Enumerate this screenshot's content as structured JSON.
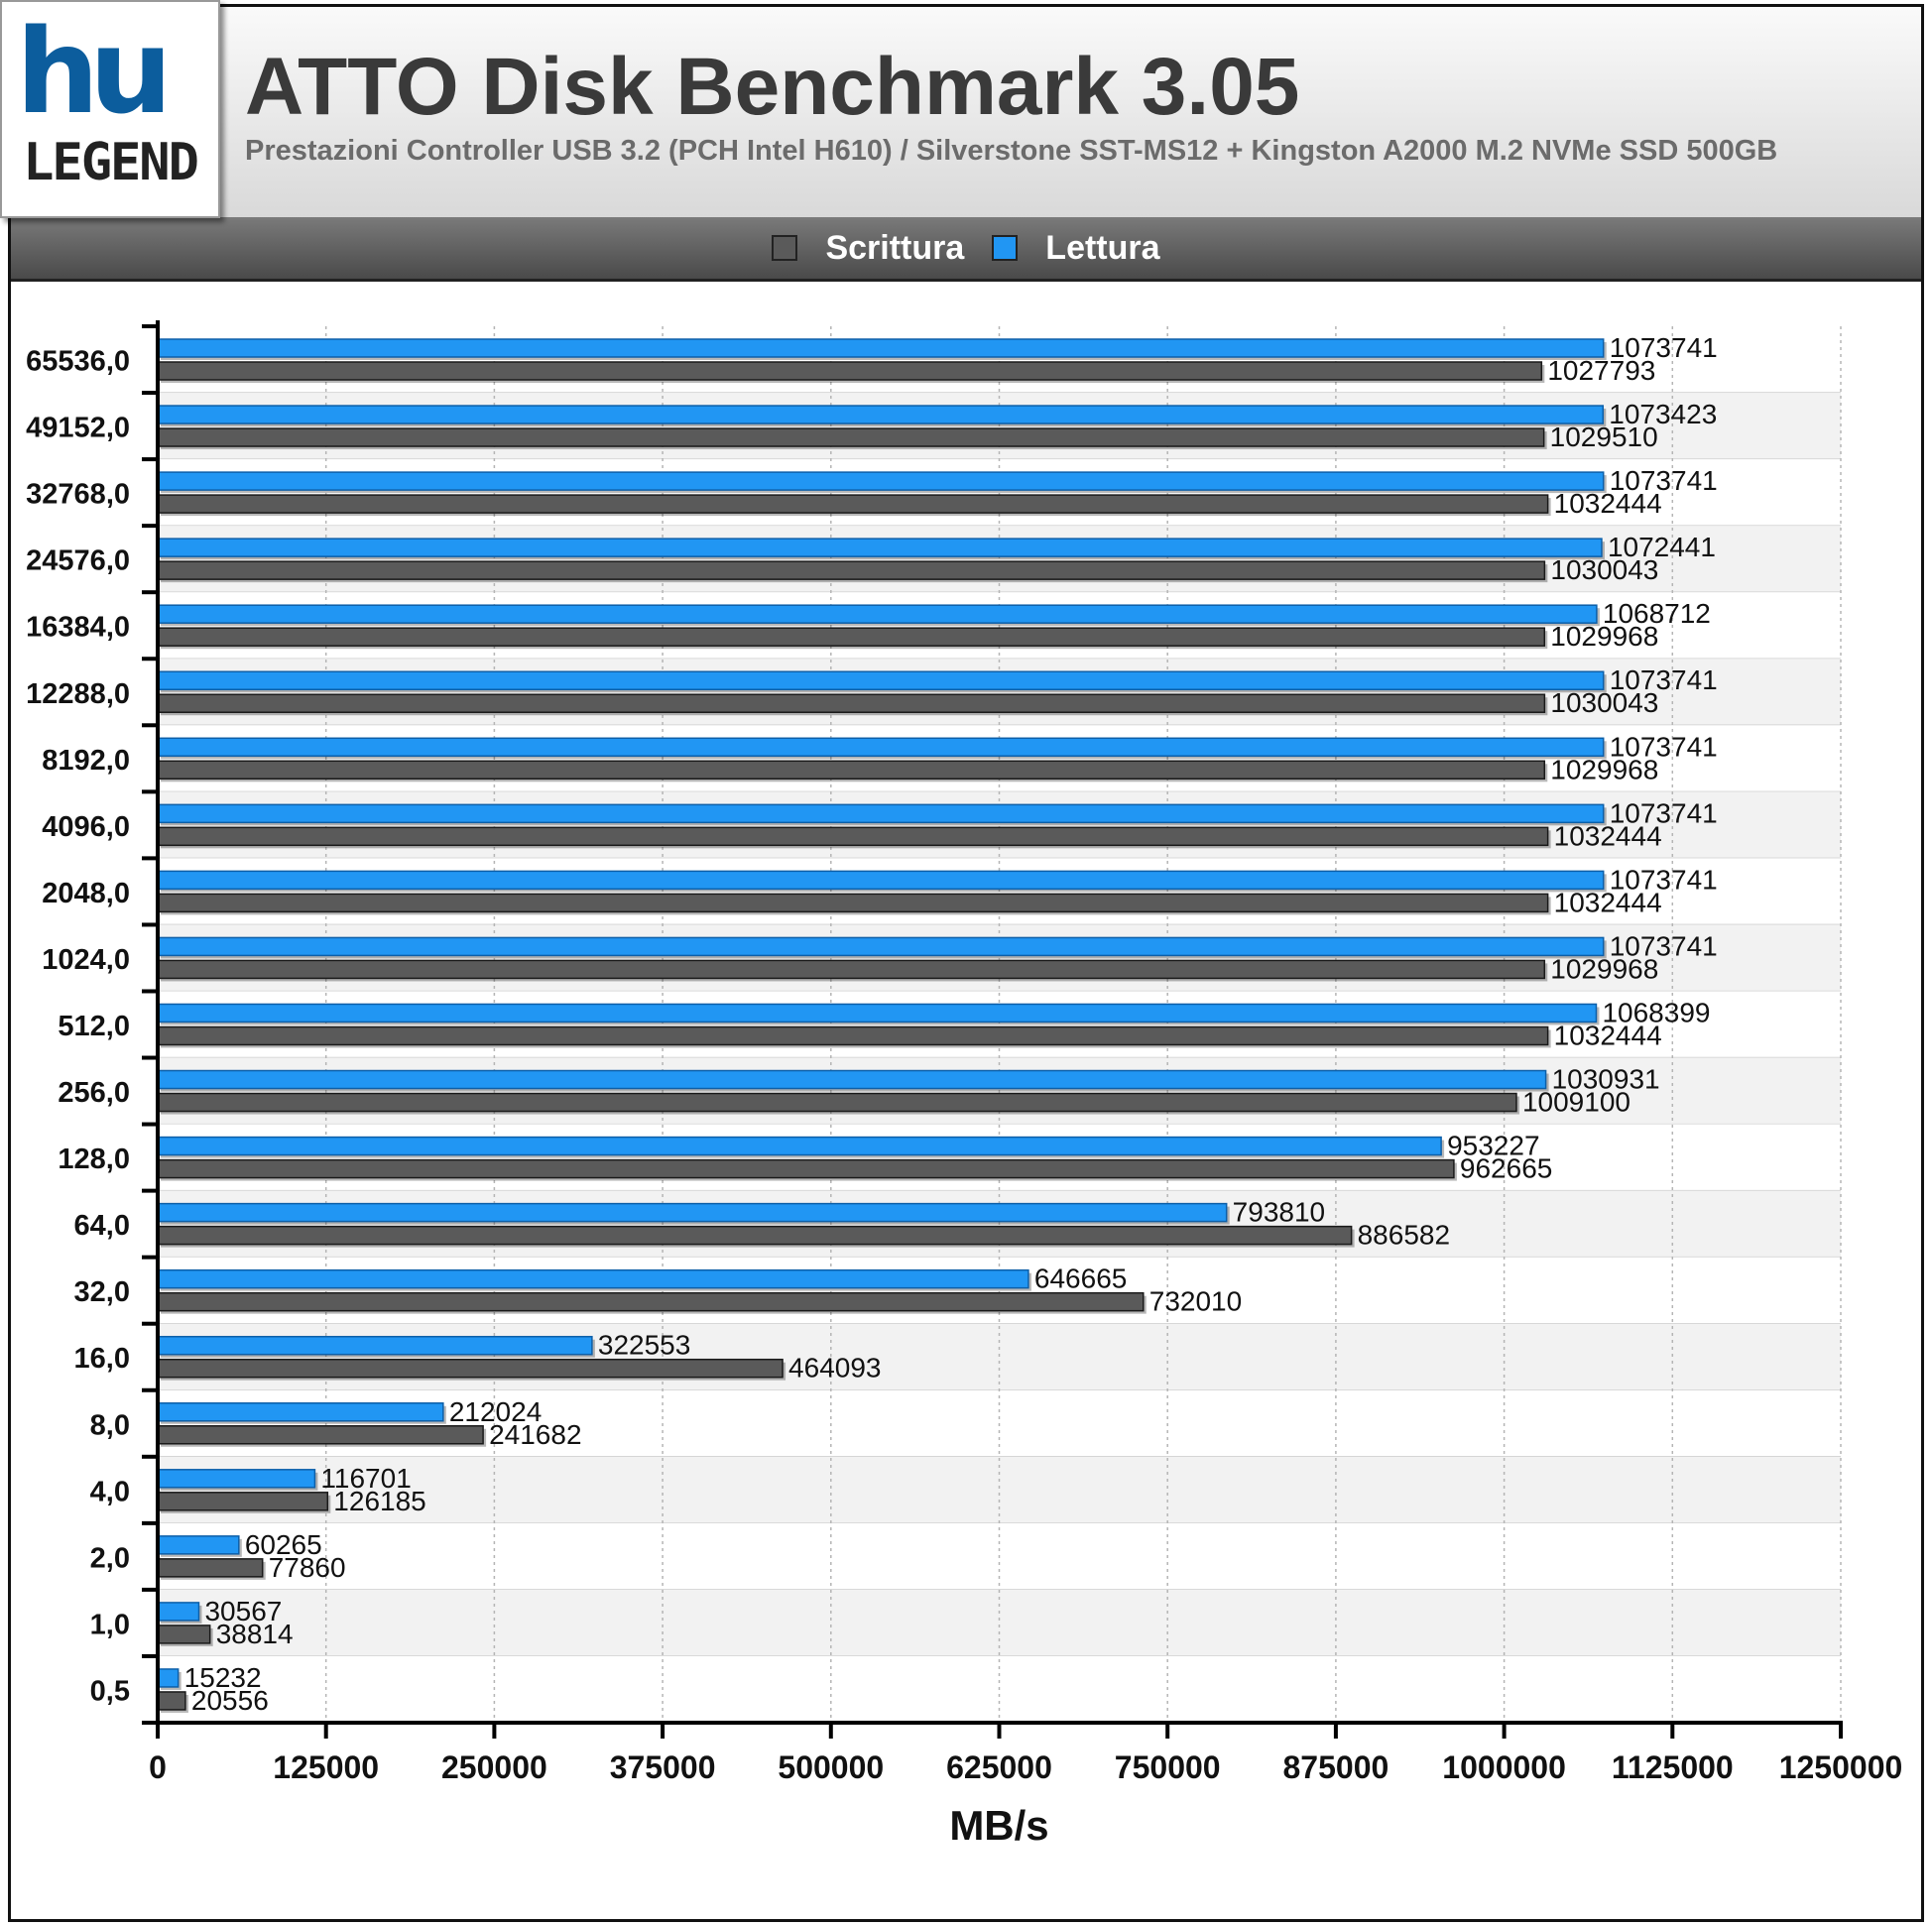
{
  "header": {
    "logo_mark": "hu",
    "logo_text": "LEGEND",
    "title": "ATTO Disk Benchmark 3.05",
    "subtitle": "Prestazioni Controller USB 3.2 (PCH Intel H610) / Silverstone SST-MS12 + Kingston A2000 M.2 NVMe SSD 500GB"
  },
  "legend": [
    {
      "label": "Scrittura",
      "color": "#5a5a5a"
    },
    {
      "label": "Lettura",
      "color": "#2196f3"
    }
  ],
  "chart_data": {
    "type": "bar",
    "orientation": "horizontal",
    "title": "ATTO Disk Benchmark 3.05",
    "xlabel": "MB/s",
    "ylabel": "",
    "xlim": [
      0,
      1250000
    ],
    "xticks": [
      "0",
      "125000",
      "250000",
      "375000",
      "500000",
      "625000",
      "750000",
      "875000",
      "1000000",
      "1125000",
      "1250000"
    ],
    "grid": true,
    "legend_position": "top",
    "categories": [
      "65536,0",
      "49152,0",
      "32768,0",
      "24576,0",
      "16384,0",
      "12288,0",
      "8192,0",
      "4096,0",
      "2048,0",
      "1024,0",
      "512,0",
      "256,0",
      "128,0",
      "64,0",
      "32,0",
      "16,0",
      "8,0",
      "4,0",
      "2,0",
      "1,0",
      "0,5"
    ],
    "series": [
      {
        "name": "Lettura",
        "color": "#2196f3",
        "values": [
          1073741,
          1073423,
          1073741,
          1072441,
          1068712,
          1073741,
          1073741,
          1073741,
          1073741,
          1073741,
          1068399,
          1030931,
          953227,
          793810,
          646665,
          322553,
          212024,
          116701,
          60265,
          30567,
          15232
        ]
      },
      {
        "name": "Scrittura",
        "color": "#5a5a5a",
        "values": [
          1027793,
          1029510,
          1032444,
          1030043,
          1029968,
          1030043,
          1029968,
          1032444,
          1032444,
          1029968,
          1032444,
          1009100,
          962665,
          886582,
          732010,
          464093,
          241682,
          126185,
          77860,
          38814,
          20556
        ]
      }
    ]
  }
}
